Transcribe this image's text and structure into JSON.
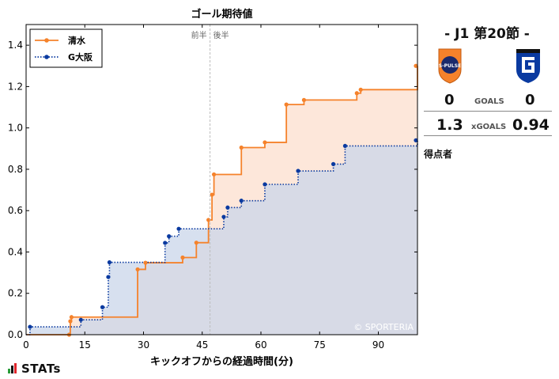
{
  "header": {
    "matchday": "- J1 第20節 -"
  },
  "teams": [
    {
      "name": "清水",
      "logo_text": "S-PULSE",
      "color": "#f5822b"
    },
    {
      "name": "G大阪",
      "logo_text": "G",
      "color": "#0a3aa0"
    }
  ],
  "stats": {
    "goals_label": "GOALS",
    "xgoals_label": "xGOALS",
    "home_goals": "0",
    "away_goals": "0",
    "home_xg": "1.3",
    "away_xg": "0.94"
  },
  "scorers_label": "得点者",
  "brand": "STATs",
  "watermark": "© SPORTERIA",
  "chart_data": {
    "type": "line",
    "title": "ゴール期待値",
    "xlabel": "キックオフからの経過時間(分)",
    "ylabel": "",
    "xlim": [
      0,
      100
    ],
    "ylim": [
      0,
      1.5
    ],
    "xticks": [
      0,
      15,
      30,
      45,
      60,
      75,
      90
    ],
    "yticks": [
      0.0,
      0.2,
      0.4,
      0.6,
      0.8,
      1.0,
      1.2,
      1.4
    ],
    "half_marker": {
      "x": 47,
      "labels": [
        "前半",
        "後半"
      ]
    },
    "legend_position": "top-left",
    "step": "post",
    "grid": false,
    "series": [
      {
        "name": "清水",
        "color": "#f5822b",
        "fill": "#fde3d3",
        "line_style": "solid",
        "x": [
          0,
          11,
          11.3,
          11.6,
          28.5,
          30.5,
          40.0,
          43.5,
          46.6,
          47.5,
          48.0,
          55.0,
          61.0,
          66.5,
          71.0,
          84.5,
          85.5,
          100
        ],
        "y": [
          0.0,
          0.0,
          0.065,
          0.085,
          0.316,
          0.348,
          0.373,
          0.445,
          0.555,
          0.677,
          0.775,
          0.905,
          0.93,
          1.113,
          1.135,
          1.168,
          1.185,
          1.3
        ]
      },
      {
        "name": "G大阪",
        "color": "#0a3aa0",
        "fill": "#c9d5ea",
        "line_style": "dotted",
        "x": [
          0,
          1.0,
          14.0,
          19.5,
          21.0,
          21.3,
          35.5,
          36.5,
          39.0,
          50.5,
          51.5,
          55.0,
          61.0,
          69.5,
          78.5,
          81.5,
          100
        ],
        "y": [
          0.0,
          0.038,
          0.072,
          0.133,
          0.279,
          0.35,
          0.444,
          0.476,
          0.512,
          0.57,
          0.615,
          0.648,
          0.727,
          0.792,
          0.825,
          0.913,
          0.94
        ]
      }
    ]
  }
}
